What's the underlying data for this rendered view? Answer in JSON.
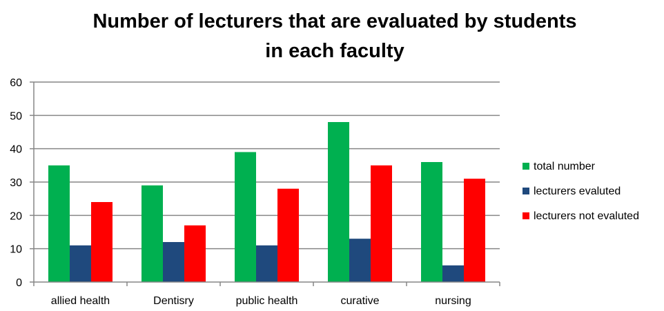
{
  "chart_data": {
    "type": "bar",
    "title_lines": [
      "Number of lecturers that are evaluated by students",
      "in each faculty"
    ],
    "categories": [
      "allied health",
      "Dentisry",
      "public health",
      "curative",
      "nursing"
    ],
    "series": [
      {
        "name": "total number",
        "values": [
          35,
          29,
          39,
          48,
          36
        ],
        "color": "#00b050"
      },
      {
        "name": "lecturers evaluted",
        "values": [
          11,
          12,
          11,
          13,
          5
        ],
        "color": "#1f497d"
      },
      {
        "name": "lecturers not evaluted",
        "values": [
          24,
          17,
          28,
          35,
          31
        ],
        "color": "#ff0000"
      }
    ],
    "ylim": [
      0,
      60
    ],
    "yticks": [
      0,
      10,
      20,
      30,
      40,
      50,
      60
    ],
    "grid": true,
    "legend_position": "right",
    "gridline_color": "#868686"
  }
}
